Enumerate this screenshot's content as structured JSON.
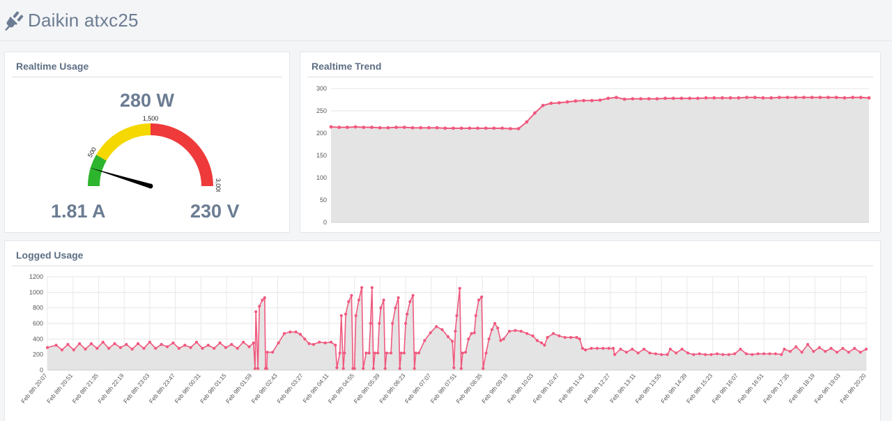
{
  "app": {
    "title": "Daikin atxc25",
    "icon": "plug-icon"
  },
  "realtime_usage": {
    "title": "Realtime Usage",
    "power": "280 W",
    "current": "1.81 A",
    "voltage": "230 V",
    "gauge": {
      "min": 0,
      "max": 3000,
      "value": 280,
      "labels": [
        "500",
        "1,500",
        "3,000"
      ],
      "bands": [
        {
          "from": 0,
          "to": 500,
          "color": "#2db52d"
        },
        {
          "from": 500,
          "to": 1500,
          "color": "#f5d800"
        },
        {
          "from": 1500,
          "to": 3000,
          "color": "#ee3a3a"
        }
      ],
      "needle_color": "#000000"
    }
  },
  "realtime_trend": {
    "title": "Realtime Trend"
  },
  "logged_usage": {
    "title": "Logged Usage"
  },
  "colors": {
    "line": "#f0587e",
    "area": "#e4e4e4",
    "text": "#5d6e84",
    "heading": "#6b7c93"
  },
  "chart_data": [
    {
      "type": "area",
      "title": "",
      "xlabel": "",
      "ylabel": "",
      "ylim": [
        0,
        300
      ],
      "yticks": [
        0,
        50,
        100,
        150,
        200,
        250,
        300
      ],
      "grid": true,
      "series": [
        {
          "values": [
            214,
            213,
            213,
            214,
            213,
            213,
            212,
            212,
            213,
            213,
            212,
            212,
            212,
            212,
            211,
            211,
            211,
            211,
            211,
            211,
            211,
            211,
            210,
            210,
            225,
            245,
            262,
            267,
            268,
            270,
            272,
            273,
            273,
            274,
            278,
            280,
            276,
            277,
            277,
            277,
            277,
            278,
            278,
            278,
            278,
            278,
            279,
            279,
            279,
            279,
            279,
            280,
            280,
            279,
            279,
            280,
            280,
            280,
            280,
            280,
            280,
            280,
            280,
            279,
            280,
            280,
            279
          ]
        }
      ]
    },
    {
      "type": "area",
      "title": "",
      "xlabel": "",
      "ylabel": "",
      "ylim": [
        0,
        1200
      ],
      "yticks": [
        0,
        200,
        400,
        600,
        800,
        1000,
        1200
      ],
      "grid": true,
      "x_tick_labels": [
        "Feb 8th 20:07",
        "Feb 8th 20:51",
        "Feb 8th 21:35",
        "Feb 8th 22:19",
        "Feb 8th 23:03",
        "Feb 8th 23:47",
        "Feb 9th 00:31",
        "Feb 9th 01:15",
        "Feb 9th 01:59",
        "Feb 9th 02:43",
        "Feb 9th 03:27",
        "Feb 9th 04:11",
        "Feb 9th 04:55",
        "Feb 9th 05:39",
        "Feb 9th 06:23",
        "Feb 9th 07:07",
        "Feb 9th 07:51",
        "Feb 9th 08:35",
        "Feb 9th 09:19",
        "Feb 9th 10:03",
        "Feb 9th 10:47",
        "Feb 9th 11:43",
        "Feb 9th 12:27",
        "Feb 9th 13:11",
        "Feb 9th 13:55",
        "Feb 9th 14:39",
        "Feb 9th 15:23",
        "Feb 9th 16:07",
        "Feb 9th 16:51",
        "Feb 9th 17:35",
        "Feb 9th 18:19",
        "Feb 9th 19:03",
        "Feb 9th 20:20"
      ],
      "series": [
        {
          "points": [
            [
              0,
              290
            ],
            [
              3,
              320
            ],
            [
              5,
              260
            ],
            [
              7,
              330
            ],
            [
              9,
              260
            ],
            [
              11,
              340
            ],
            [
              13,
              270
            ],
            [
              15,
              340
            ],
            [
              17,
              280
            ],
            [
              19,
              360
            ],
            [
              21,
              280
            ],
            [
              23,
              340
            ],
            [
              25,
              290
            ],
            [
              27,
              330
            ],
            [
              29,
              270
            ],
            [
              31,
              340
            ],
            [
              33,
              280
            ],
            [
              35,
              360
            ],
            [
              37,
              280
            ],
            [
              39,
              330
            ],
            [
              41,
              300
            ],
            [
              43,
              350
            ],
            [
              45,
              280
            ],
            [
              47,
              320
            ],
            [
              49,
              290
            ],
            [
              51,
              360
            ],
            [
              53,
              280
            ],
            [
              55,
              320
            ],
            [
              57,
              280
            ],
            [
              59,
              350
            ],
            [
              61,
              290
            ],
            [
              63,
              330
            ],
            [
              65,
              280
            ],
            [
              67,
              360
            ],
            [
              69,
              300
            ],
            [
              70.5,
              350
            ],
            [
              71,
              20
            ],
            [
              71.3,
              750
            ],
            [
              72,
              20
            ],
            [
              72.5,
              820
            ],
            [
              73.5,
              900
            ],
            [
              74.3,
              930
            ],
            [
              74.6,
              20
            ],
            [
              75,
              20
            ],
            [
              75.2,
              230
            ],
            [
              77,
              230
            ],
            [
              79,
              350
            ],
            [
              81,
              470
            ],
            [
              83,
              490
            ],
            [
              85,
              490
            ],
            [
              86.5,
              460
            ],
            [
              88,
              400
            ],
            [
              89.5,
              340
            ],
            [
              91,
              330
            ],
            [
              93,
              360
            ],
            [
              95,
              350
            ],
            [
              97,
              360
            ],
            [
              98.5,
              320
            ],
            [
              99,
              30
            ],
            [
              100,
              220
            ],
            [
              100.5,
              700
            ],
            [
              101.2,
              20
            ],
            [
              101.6,
              220
            ],
            [
              102,
              720
            ],
            [
              103,
              880
            ],
            [
              104,
              960
            ],
            [
              104.5,
              20
            ],
            [
              105,
              20
            ],
            [
              105.5,
              700
            ],
            [
              106.5,
              900
            ],
            [
              107.5,
              1060
            ],
            [
              108,
              20
            ],
            [
              109,
              220
            ],
            [
              110,
              220
            ],
            [
              110.5,
              600
            ],
            [
              111,
              1060
            ],
            [
              111.5,
              20
            ],
            [
              112,
              220
            ],
            [
              113,
              220
            ],
            [
              113.5,
              600
            ],
            [
              114,
              800
            ],
            [
              115,
              900
            ],
            [
              115.5,
              20
            ],
            [
              116,
              220
            ],
            [
              117.5,
              220
            ],
            [
              118,
              600
            ],
            [
              119,
              800
            ],
            [
              120,
              930
            ],
            [
              120.5,
              20
            ],
            [
              121,
              220
            ],
            [
              122,
              220
            ],
            [
              122.5,
              600
            ],
            [
              123,
              720
            ],
            [
              124,
              880
            ],
            [
              125,
              960
            ],
            [
              125.5,
              20
            ],
            [
              126,
              220
            ],
            [
              127,
              220
            ],
            [
              129,
              380
            ],
            [
              131,
              480
            ],
            [
              133,
              560
            ],
            [
              135,
              520
            ],
            [
              137,
              430
            ],
            [
              138.5,
              370
            ],
            [
              139,
              30
            ],
            [
              139.5,
              500
            ],
            [
              140,
              700
            ],
            [
              141,
              1050
            ],
            [
              141.5,
              20
            ],
            [
              142,
              220
            ],
            [
              143,
              230
            ],
            [
              144,
              400
            ],
            [
              145,
              470
            ],
            [
              146,
              480
            ],
            [
              146.5,
              700
            ],
            [
              147.5,
              900
            ],
            [
              148.5,
              940
            ],
            [
              149,
              20
            ],
            [
              150,
              220
            ],
            [
              151,
              400
            ],
            [
              152,
              520
            ],
            [
              153,
              600
            ],
            [
              154,
              540
            ],
            [
              155,
              380
            ],
            [
              156,
              400
            ],
            [
              158,
              500
            ],
            [
              160,
              510
            ],
            [
              162,
              500
            ],
            [
              164,
              470
            ],
            [
              166,
              440
            ],
            [
              167.5,
              380
            ],
            [
              169,
              350
            ],
            [
              170,
              320
            ],
            [
              171,
              420
            ],
            [
              173,
              470
            ],
            [
              175,
              440
            ],
            [
              177,
              420
            ],
            [
              179,
              420
            ],
            [
              181,
              420
            ],
            [
              182,
              400
            ],
            [
              183,
              280
            ],
            [
              184,
              260
            ],
            [
              186,
              280
            ],
            [
              188,
              280
            ],
            [
              190,
              280
            ],
            [
              192,
              280
            ],
            [
              193.5,
              280
            ],
            [
              194,
              200
            ],
            [
              196,
              270
            ],
            [
              198,
              230
            ],
            [
              200,
              270
            ],
            [
              202,
              220
            ],
            [
              204,
              270
            ],
            [
              206,
              220
            ],
            [
              208,
              210
            ],
            [
              210,
              200
            ],
            [
              212,
              200
            ],
            [
              213,
              270
            ],
            [
              215,
              220
            ],
            [
              217,
              270
            ],
            [
              219,
              220
            ],
            [
              221,
              200
            ],
            [
              223,
              210
            ],
            [
              225,
              200
            ],
            [
              227,
              200
            ],
            [
              229,
              210
            ],
            [
              231,
              200
            ],
            [
              233,
              200
            ],
            [
              235,
              210
            ],
            [
              237,
              270
            ],
            [
              239,
              210
            ],
            [
              241,
              200
            ],
            [
              243,
              210
            ],
            [
              245,
              210
            ],
            [
              247,
              210
            ],
            [
              249,
              210
            ],
            [
              251,
              200
            ],
            [
              252,
              270
            ],
            [
              254,
              240
            ],
            [
              256,
              300
            ],
            [
              258,
              230
            ],
            [
              260,
              330
            ],
            [
              262,
              240
            ],
            [
              264,
              290
            ],
            [
              266,
              240
            ],
            [
              268,
              280
            ],
            [
              270,
              230
            ],
            [
              272,
              280
            ],
            [
              274,
              230
            ],
            [
              276,
              280
            ],
            [
              278,
              230
            ],
            [
              280,
              270
            ]
          ]
        }
      ]
    }
  ]
}
